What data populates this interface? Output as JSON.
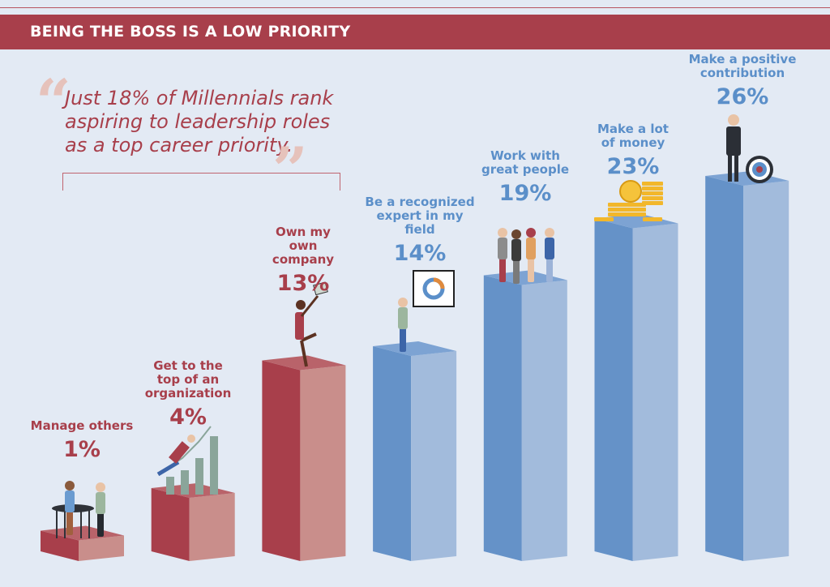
{
  "header": {
    "title": "BEING THE BOSS IS A LOW PRIORITY"
  },
  "quote": {
    "text": "Just 18% of Millennials rank aspiring to leadership roles as a top career priority."
  },
  "colors": {
    "red": "#a83f4b",
    "red_light": "#c98e8b",
    "blue": "#6592c8",
    "blue_light": "#a2bbdc",
    "background": "#e3eaf4"
  },
  "chart_data": {
    "type": "bar",
    "categories": [
      "Manage others",
      "Get to the top of an organization",
      "Own my own company",
      "Be a recognized expert in my field",
      "Work with great people",
      "Make a lot of money",
      "Make a positive contribution"
    ],
    "values": [
      1,
      4,
      13,
      14,
      19,
      23,
      26
    ],
    "value_labels": [
      "1%",
      "4%",
      "13%",
      "14%",
      "19%",
      "23%",
      "26%"
    ],
    "series_colors": [
      "red",
      "red",
      "red",
      "blue",
      "blue",
      "blue",
      "blue"
    ],
    "title": "BEING THE BOSS IS A LOW PRIORITY",
    "xlabel": "",
    "ylabel": "",
    "grid": false
  }
}
